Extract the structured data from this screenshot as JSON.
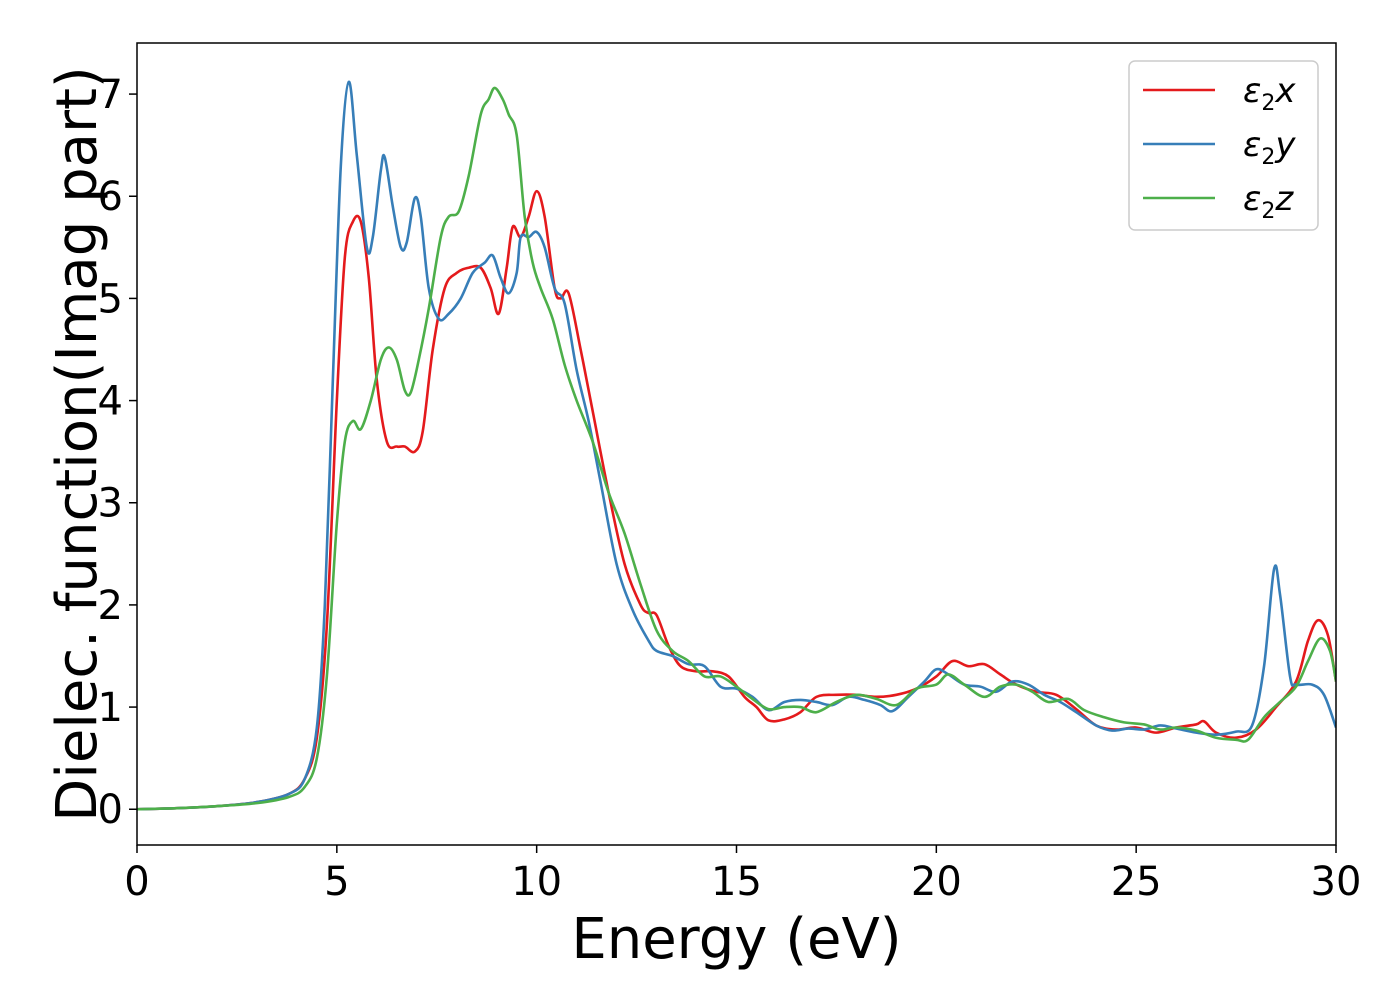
{
  "chart_data": {
    "type": "line",
    "title": "",
    "xlabel": "Energy (eV)",
    "ylabel": "Dielec. function(Imag part)",
    "xlim": [
      0,
      30
    ],
    "ylim": [
      -0.35,
      7.5
    ],
    "xticks": [
      0,
      5,
      10,
      15,
      20,
      25,
      30
    ],
    "yticks": [
      0,
      1,
      2,
      3,
      4,
      5,
      6,
      7
    ],
    "grid": false,
    "legend_position": "top-right",
    "series": [
      {
        "name": "ε2x",
        "legend_base": "ε",
        "legend_sub": "2",
        "legend_var": "x",
        "color": "#e41a1c",
        "points": [
          [
            0,
            0.0
          ],
          [
            1,
            0.01
          ],
          [
            2,
            0.03
          ],
          [
            3,
            0.07
          ],
          [
            3.8,
            0.15
          ],
          [
            4.2,
            0.3
          ],
          [
            4.5,
            0.7
          ],
          [
            4.75,
            1.8
          ],
          [
            5.0,
            4.0
          ],
          [
            5.2,
            5.4
          ],
          [
            5.4,
            5.75
          ],
          [
            5.6,
            5.75
          ],
          [
            5.8,
            5.2
          ],
          [
            6.0,
            4.2
          ],
          [
            6.25,
            3.6
          ],
          [
            6.5,
            3.55
          ],
          [
            6.7,
            3.55
          ],
          [
            6.95,
            3.5
          ],
          [
            7.15,
            3.7
          ],
          [
            7.4,
            4.5
          ],
          [
            7.7,
            5.1
          ],
          [
            8.0,
            5.25
          ],
          [
            8.3,
            5.3
          ],
          [
            8.6,
            5.3
          ],
          [
            8.85,
            5.1
          ],
          [
            9.05,
            4.85
          ],
          [
            9.25,
            5.3
          ],
          [
            9.4,
            5.7
          ],
          [
            9.6,
            5.6
          ],
          [
            9.8,
            5.8
          ],
          [
            10.0,
            6.05
          ],
          [
            10.2,
            5.8
          ],
          [
            10.45,
            5.1
          ],
          [
            10.6,
            5.0
          ],
          [
            10.8,
            5.05
          ],
          [
            11.1,
            4.5
          ],
          [
            11.4,
            3.9
          ],
          [
            11.8,
            3.1
          ],
          [
            12.2,
            2.4
          ],
          [
            12.6,
            2.0
          ],
          [
            12.8,
            1.92
          ],
          [
            13.0,
            1.9
          ],
          [
            13.3,
            1.6
          ],
          [
            13.6,
            1.4
          ],
          [
            14.0,
            1.35
          ],
          [
            14.4,
            1.35
          ],
          [
            14.8,
            1.3
          ],
          [
            15.2,
            1.1
          ],
          [
            15.5,
            1.0
          ],
          [
            15.8,
            0.87
          ],
          [
            16.2,
            0.88
          ],
          [
            16.6,
            0.95
          ],
          [
            17.0,
            1.1
          ],
          [
            17.5,
            1.12
          ],
          [
            18.0,
            1.12
          ],
          [
            18.5,
            1.1
          ],
          [
            19.0,
            1.12
          ],
          [
            19.5,
            1.18
          ],
          [
            20.0,
            1.3
          ],
          [
            20.4,
            1.45
          ],
          [
            20.8,
            1.4
          ],
          [
            21.2,
            1.42
          ],
          [
            21.6,
            1.32
          ],
          [
            22.0,
            1.22
          ],
          [
            22.5,
            1.15
          ],
          [
            23.0,
            1.12
          ],
          [
            23.5,
            0.98
          ],
          [
            24.0,
            0.82
          ],
          [
            24.5,
            0.78
          ],
          [
            25.0,
            0.8
          ],
          [
            25.5,
            0.75
          ],
          [
            26.0,
            0.8
          ],
          [
            26.5,
            0.83
          ],
          [
            26.7,
            0.86
          ],
          [
            27.0,
            0.75
          ],
          [
            27.5,
            0.7
          ],
          [
            28.0,
            0.78
          ],
          [
            28.5,
            1.0
          ],
          [
            29.0,
            1.25
          ],
          [
            29.3,
            1.65
          ],
          [
            29.55,
            1.85
          ],
          [
            29.8,
            1.7
          ],
          [
            30,
            1.25
          ]
        ]
      },
      {
        "name": "ε2y",
        "legend_base": "ε",
        "legend_sub": "2",
        "legend_var": "y",
        "color": "#377eb8",
        "points": [
          [
            0,
            0.0
          ],
          [
            1,
            0.01
          ],
          [
            2,
            0.03
          ],
          [
            3,
            0.07
          ],
          [
            3.8,
            0.15
          ],
          [
            4.2,
            0.3
          ],
          [
            4.5,
            0.8
          ],
          [
            4.7,
            2.0
          ],
          [
            4.9,
            4.2
          ],
          [
            5.1,
            6.3
          ],
          [
            5.3,
            7.12
          ],
          [
            5.5,
            6.4
          ],
          [
            5.75,
            5.5
          ],
          [
            5.9,
            5.6
          ],
          [
            6.1,
            6.25
          ],
          [
            6.2,
            6.38
          ],
          [
            6.4,
            5.9
          ],
          [
            6.6,
            5.5
          ],
          [
            6.75,
            5.55
          ],
          [
            6.95,
            5.98
          ],
          [
            7.1,
            5.8
          ],
          [
            7.3,
            5.1
          ],
          [
            7.55,
            4.8
          ],
          [
            7.8,
            4.85
          ],
          [
            8.1,
            5.0
          ],
          [
            8.4,
            5.25
          ],
          [
            8.7,
            5.35
          ],
          [
            8.9,
            5.42
          ],
          [
            9.1,
            5.2
          ],
          [
            9.3,
            5.05
          ],
          [
            9.5,
            5.25
          ],
          [
            9.6,
            5.6
          ],
          [
            9.8,
            5.6
          ],
          [
            10.0,
            5.65
          ],
          [
            10.2,
            5.5
          ],
          [
            10.45,
            5.1
          ],
          [
            10.7,
            4.95
          ],
          [
            11.0,
            4.3
          ],
          [
            11.3,
            3.8
          ],
          [
            11.6,
            3.2
          ],
          [
            12.0,
            2.4
          ],
          [
            12.4,
            1.95
          ],
          [
            12.8,
            1.65
          ],
          [
            13.0,
            1.55
          ],
          [
            13.4,
            1.5
          ],
          [
            13.8,
            1.42
          ],
          [
            14.2,
            1.4
          ],
          [
            14.6,
            1.2
          ],
          [
            15.0,
            1.18
          ],
          [
            15.4,
            1.1
          ],
          [
            15.8,
            0.97
          ],
          [
            16.2,
            1.05
          ],
          [
            16.6,
            1.07
          ],
          [
            17.0,
            1.05
          ],
          [
            17.4,
            1.02
          ],
          [
            17.8,
            1.1
          ],
          [
            18.2,
            1.07
          ],
          [
            18.6,
            1.02
          ],
          [
            18.9,
            0.96
          ],
          [
            19.3,
            1.1
          ],
          [
            19.7,
            1.25
          ],
          [
            20.0,
            1.37
          ],
          [
            20.3,
            1.32
          ],
          [
            20.7,
            1.22
          ],
          [
            21.1,
            1.2
          ],
          [
            21.5,
            1.15
          ],
          [
            21.9,
            1.25
          ],
          [
            22.3,
            1.22
          ],
          [
            22.7,
            1.12
          ],
          [
            23.1,
            1.05
          ],
          [
            23.5,
            0.95
          ],
          [
            24.0,
            0.82
          ],
          [
            24.4,
            0.77
          ],
          [
            24.8,
            0.79
          ],
          [
            25.2,
            0.78
          ],
          [
            25.6,
            0.82
          ],
          [
            26.0,
            0.79
          ],
          [
            26.5,
            0.75
          ],
          [
            27.0,
            0.73
          ],
          [
            27.5,
            0.76
          ],
          [
            27.9,
            0.82
          ],
          [
            28.2,
            1.4
          ],
          [
            28.45,
            2.35
          ],
          [
            28.6,
            2.1
          ],
          [
            28.85,
            1.3
          ],
          [
            29.0,
            1.22
          ],
          [
            29.4,
            1.22
          ],
          [
            29.7,
            1.12
          ],
          [
            30,
            0.8
          ]
        ]
      },
      {
        "name": "ε2z",
        "legend_base": "ε",
        "legend_sub": "2",
        "legend_var": "z",
        "color": "#4daf4a",
        "points": [
          [
            0,
            0.0
          ],
          [
            1,
            0.01
          ],
          [
            2,
            0.03
          ],
          [
            3,
            0.06
          ],
          [
            3.8,
            0.12
          ],
          [
            4.2,
            0.22
          ],
          [
            4.5,
            0.5
          ],
          [
            4.75,
            1.3
          ],
          [
            5.0,
            2.8
          ],
          [
            5.2,
            3.6
          ],
          [
            5.4,
            3.8
          ],
          [
            5.6,
            3.72
          ],
          [
            5.85,
            4.0
          ],
          [
            6.1,
            4.4
          ],
          [
            6.3,
            4.52
          ],
          [
            6.5,
            4.4
          ],
          [
            6.7,
            4.1
          ],
          [
            6.85,
            4.08
          ],
          [
            7.05,
            4.4
          ],
          [
            7.3,
            4.9
          ],
          [
            7.6,
            5.6
          ],
          [
            7.8,
            5.8
          ],
          [
            8.05,
            5.85
          ],
          [
            8.3,
            6.2
          ],
          [
            8.6,
            6.8
          ],
          [
            8.8,
            6.95
          ],
          [
            8.95,
            7.06
          ],
          [
            9.15,
            6.95
          ],
          [
            9.3,
            6.8
          ],
          [
            9.5,
            6.6
          ],
          [
            9.7,
            5.8
          ],
          [
            9.9,
            5.35
          ],
          [
            10.1,
            5.1
          ],
          [
            10.4,
            4.8
          ],
          [
            10.7,
            4.35
          ],
          [
            11.0,
            4.0
          ],
          [
            11.4,
            3.6
          ],
          [
            11.8,
            3.1
          ],
          [
            12.2,
            2.7
          ],
          [
            12.6,
            2.2
          ],
          [
            13.0,
            1.75
          ],
          [
            13.4,
            1.55
          ],
          [
            13.8,
            1.45
          ],
          [
            14.2,
            1.3
          ],
          [
            14.6,
            1.3
          ],
          [
            15.0,
            1.2
          ],
          [
            15.4,
            1.08
          ],
          [
            15.8,
            0.98
          ],
          [
            16.2,
            1.0
          ],
          [
            16.6,
            1.0
          ],
          [
            17.0,
            0.95
          ],
          [
            17.5,
            1.05
          ],
          [
            18.0,
            1.12
          ],
          [
            18.5,
            1.08
          ],
          [
            19.0,
            1.02
          ],
          [
            19.5,
            1.18
          ],
          [
            20.0,
            1.22
          ],
          [
            20.3,
            1.32
          ],
          [
            20.7,
            1.22
          ],
          [
            21.2,
            1.1
          ],
          [
            21.6,
            1.2
          ],
          [
            22.0,
            1.22
          ],
          [
            22.4,
            1.15
          ],
          [
            22.8,
            1.05
          ],
          [
            23.3,
            1.08
          ],
          [
            23.7,
            0.97
          ],
          [
            24.2,
            0.9
          ],
          [
            24.7,
            0.85
          ],
          [
            25.2,
            0.83
          ],
          [
            25.6,
            0.78
          ],
          [
            26.0,
            0.8
          ],
          [
            26.5,
            0.77
          ],
          [
            27.0,
            0.7
          ],
          [
            27.5,
            0.68
          ],
          [
            27.8,
            0.68
          ],
          [
            28.2,
            0.9
          ],
          [
            28.6,
            1.05
          ],
          [
            29.0,
            1.2
          ],
          [
            29.3,
            1.45
          ],
          [
            29.6,
            1.67
          ],
          [
            29.85,
            1.55
          ],
          [
            30,
            1.25
          ]
        ]
      }
    ]
  }
}
